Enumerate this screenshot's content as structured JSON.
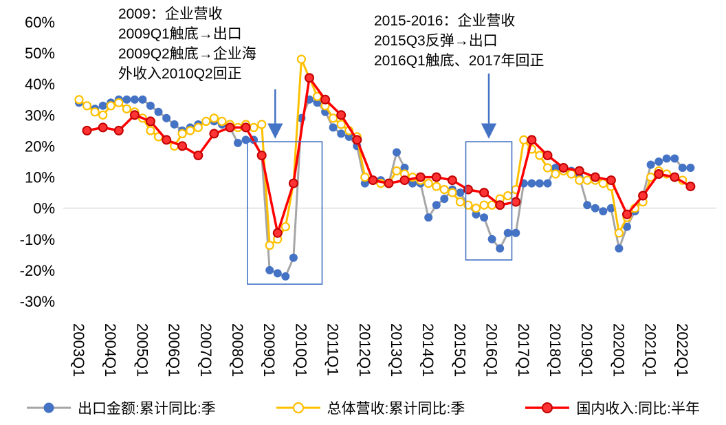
{
  "chart_data": {
    "type": "line",
    "background_color": "#ffffff",
    "accent_color": "#4472C4",
    "y_ticks": [
      60,
      50,
      40,
      30,
      20,
      10,
      0,
      -10,
      -20,
      -30
    ],
    "y_tick_labels": [
      "60%",
      "50%",
      "40%",
      "30%",
      "20%",
      "10%",
      "0%",
      "-10%",
      "-20%",
      "-30%"
    ],
    "ylim": [
      -30,
      60
    ],
    "x_tick_labels": [
      "2003Q1",
      "2004Q1",
      "2005Q1",
      "2006Q1",
      "2007Q1",
      "2008Q1",
      "2009Q1",
      "2010Q1",
      "2011Q1",
      "2012Q1",
      "2013Q1",
      "2014Q1",
      "2015Q1",
      "2016Q1",
      "2017Q1",
      "2018Q1",
      "2019Q1",
      "2020Q1",
      "2021Q1",
      "2022Q1"
    ],
    "series": [
      {
        "name": "出口金额:累计同比:季",
        "line_color": "#A6A6A6",
        "line_width": 3,
        "marker_fill": "#4472C4",
        "marker_stroke": "#4472C4",
        "marker_stroke_width": 1,
        "marker_radius": 5.5,
        "x_start_quarter_index": 0,
        "x_step_quarters": 1,
        "values": [
          34,
          33,
          32,
          33,
          34,
          35,
          35,
          35,
          35,
          33,
          31,
          29,
          27,
          25,
          26,
          27,
          28,
          28,
          27,
          26,
          21,
          22,
          22,
          17,
          -20,
          -21,
          -22,
          -16,
          29,
          35,
          34,
          31,
          26,
          24,
          23,
          20,
          8,
          9,
          9,
          8,
          18,
          13,
          8,
          8,
          -3,
          1,
          3,
          6,
          5,
          1,
          -2,
          -3,
          -10,
          -13,
          -8,
          -8,
          8,
          8,
          8,
          8,
          13,
          12,
          12,
          10,
          1,
          0,
          -1,
          0,
          -13,
          -6,
          -1,
          4,
          14,
          15,
          16,
          16,
          13,
          13
        ]
      },
      {
        "name": "总体营收:累计同比:季",
        "line_color": "#FFC000",
        "line_width": 3,
        "marker_fill": "#FFFFFF",
        "marker_stroke": "#FFC000",
        "marker_stroke_width": 2.2,
        "marker_radius": 5.5,
        "x_start_quarter_index": 0,
        "x_step_quarters": 1,
        "values": [
          35,
          33,
          31,
          30,
          33,
          34,
          32,
          31,
          29,
          25,
          23,
          22,
          20,
          24,
          25,
          26,
          28,
          29,
          28,
          27,
          26,
          27,
          26,
          27,
          -12,
          -10,
          -6,
          8,
          48,
          42,
          36,
          33,
          29,
          27,
          25,
          23,
          10,
          9,
          8,
          8,
          12,
          11,
          10,
          9,
          8,
          7,
          6,
          5,
          2,
          1,
          0,
          1,
          1,
          3,
          4,
          6,
          22,
          19,
          17,
          13,
          11,
          12,
          11,
          9,
          9,
          9,
          8,
          7,
          -8,
          -3,
          0,
          2,
          10,
          12,
          11,
          10,
          9
        ]
      },
      {
        "name": "国内收入:同比:半年",
        "line_color": "#FF0000",
        "line_width": 3.5,
        "marker_fill": "#FF3333",
        "marker_stroke": "#C00000",
        "marker_stroke_width": 2,
        "marker_radius": 6,
        "x_start_quarter_index": 1,
        "x_step_quarters": 2,
        "values": [
          25,
          26,
          25,
          30,
          28,
          22,
          20,
          17,
          24,
          26,
          26,
          17,
          -8,
          8,
          42,
          35,
          30,
          22,
          9,
          8,
          9,
          10,
          10,
          9,
          6,
          5,
          1,
          2,
          22,
          17,
          13,
          12,
          10,
          9,
          -2,
          4,
          11,
          10,
          7
        ]
      }
    ],
    "annotations": {
      "box2009": {
        "lines": [
          "2009：企业营收",
          "2009Q1触底→出口",
          "2009Q2触底→企业海",
          "外收入2010Q2回正"
        ]
      },
      "box2015": {
        "lines": [
          "2015-2016：企业营收",
          "2015Q3反弹→出口",
          "2016Q1触底、2017年回正"
        ]
      }
    },
    "highlight_boxes": [
      {
        "x0_q": 21.2,
        "x1_q": 30.6,
        "y_top": 21.4,
        "y_bottom": -24.5
      },
      {
        "x0_q": 48.7,
        "x1_q": 54.5,
        "y_top": 21.4,
        "y_bottom": -16.7
      }
    ],
    "arrows": [
      {
        "x_q": 24.7,
        "y_from": 38.3,
        "y_to": 23.2
      },
      {
        "x_q": 51.6,
        "y_from": 43.4,
        "y_to": 23.2
      }
    ],
    "legend_position": "bottom",
    "grid": "zero-line-only"
  }
}
